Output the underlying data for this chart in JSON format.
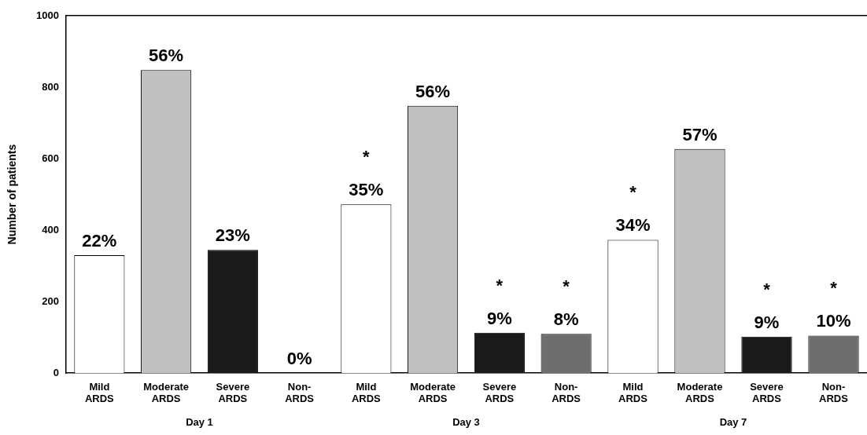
{
  "chart_data": [
    {
      "type": "bar",
      "ylabel": "Number of patients",
      "xlabel": "Day 1",
      "categories": [
        "Mild ARDS",
        "Moderate ARDS",
        "Severe ARDS",
        "Non-ARDS"
      ],
      "values": [
        330,
        848,
        345,
        0
      ],
      "colors": [
        "#ffffff",
        "#c0c0c0",
        "#1a1a1a",
        "#6e6e6e"
      ],
      "annotations": [
        {
          "text": "22%",
          "x": "Mild ARDS",
          "y": 330
        },
        {
          "text": "56%",
          "x": "Moderate ARDS",
          "y": 848
        },
        {
          "text": "23%",
          "x": "Severe ARDS",
          "y": 345
        },
        {
          "text": "0%",
          "x": "Non-ARDS",
          "y": 0
        }
      ],
      "ylim": [
        0,
        1000
      ],
      "yticks": [
        0,
        200,
        400,
        600,
        800,
        1000
      ]
    },
    {
      "type": "bar",
      "xlabel": "Day 3",
      "categories": [
        "Mild ARDS",
        "Moderate ARDS",
        "Severe ARDS",
        "Non-ARDS"
      ],
      "values": [
        472,
        748,
        113,
        110
      ],
      "colors": [
        "#ffffff",
        "#c0c0c0",
        "#1a1a1a",
        "#6e6e6e"
      ],
      "annotations": [
        {
          "text": "35%",
          "x": "Mild ARDS",
          "y": 472
        },
        {
          "text": "*",
          "x": "Mild ARDS",
          "y": 472
        },
        {
          "text": "56%",
          "x": "Moderate ARDS",
          "y": 748
        },
        {
          "text": "9%",
          "x": "Severe ARDS",
          "y": 113
        },
        {
          "text": "*",
          "x": "Severe ARDS",
          "y": 113
        },
        {
          "text": "8%",
          "x": "Non-ARDS",
          "y": 110
        },
        {
          "text": "*",
          "x": "Non-ARDS",
          "y": 110
        }
      ],
      "ylim": [
        0,
        1000
      ],
      "yticks": [
        0,
        200,
        400,
        600,
        800,
        1000
      ],
      "tick_labels": "x"
    },
    {
      "type": "bar",
      "xlabel": "Day 7",
      "categories": [
        "Mild ARDS",
        "Moderate ARDS",
        "Severe ARDS",
        "Non-ARDS"
      ],
      "values": [
        373,
        627,
        102,
        105
      ],
      "colors": [
        "#ffffff",
        "#c0c0c0",
        "#1a1a1a",
        "#6e6e6e"
      ],
      "annotations": [
        {
          "text": "34%",
          "x": "Mild ARDS",
          "y": 373
        },
        {
          "text": "*",
          "x": "Mild ARDS",
          "y": 373
        },
        {
          "text": "57%",
          "x": "Moderate ARDS",
          "y": 627
        },
        {
          "text": "9%",
          "x": "Severe ARDS",
          "y": 102
        },
        {
          "text": "*",
          "x": "Severe ARDS",
          "y": 102
        },
        {
          "text": "10%",
          "x": "Non-ARDS",
          "y": 105
        },
        {
          "text": "*",
          "x": "Non-ARDS",
          "y": 105
        }
      ],
      "ylim": [
        0,
        1000
      ],
      "yticks": [
        0,
        200,
        400,
        600,
        800,
        1000
      ],
      "tick_labels": "x"
    }
  ]
}
